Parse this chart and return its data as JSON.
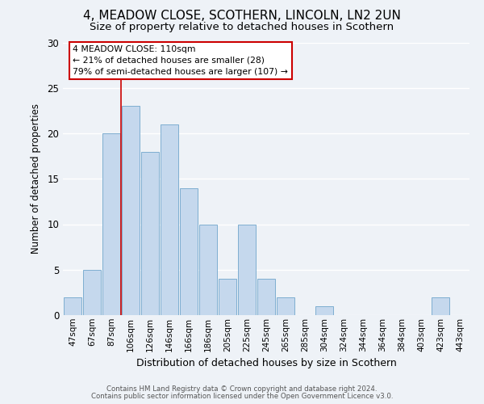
{
  "title": "4, MEADOW CLOSE, SCOTHERN, LINCOLN, LN2 2UN",
  "subtitle": "Size of property relative to detached houses in Scothern",
  "xlabel": "Distribution of detached houses by size in Scothern",
  "ylabel": "Number of detached properties",
  "bar_labels": [
    "47sqm",
    "67sqm",
    "87sqm",
    "106sqm",
    "126sqm",
    "146sqm",
    "166sqm",
    "186sqm",
    "205sqm",
    "225sqm",
    "245sqm",
    "265sqm",
    "285sqm",
    "304sqm",
    "324sqm",
    "344sqm",
    "364sqm",
    "384sqm",
    "403sqm",
    "423sqm",
    "443sqm"
  ],
  "bar_values": [
    2,
    5,
    20,
    23,
    18,
    21,
    14,
    10,
    4,
    10,
    4,
    2,
    0,
    1,
    0,
    0,
    0,
    0,
    0,
    2,
    0
  ],
  "bar_color": "#c5d8ed",
  "bar_edge_color": "#7eaed0",
  "ylim": [
    0,
    30
  ],
  "yticks": [
    0,
    5,
    10,
    15,
    20,
    25,
    30
  ],
  "vline_color": "#cc0000",
  "annotation_lines": [
    "4 MEADOW CLOSE: 110sqm",
    "← 21% of detached houses are smaller (28)",
    "79% of semi-detached houses are larger (107) →"
  ],
  "footer1": "Contains HM Land Registry data © Crown copyright and database right 2024.",
  "footer2": "Contains public sector information licensed under the Open Government Licence v3.0.",
  "background_color": "#eef2f7",
  "grid_color": "#ffffff",
  "title_fontsize": 11,
  "subtitle_fontsize": 9.5
}
